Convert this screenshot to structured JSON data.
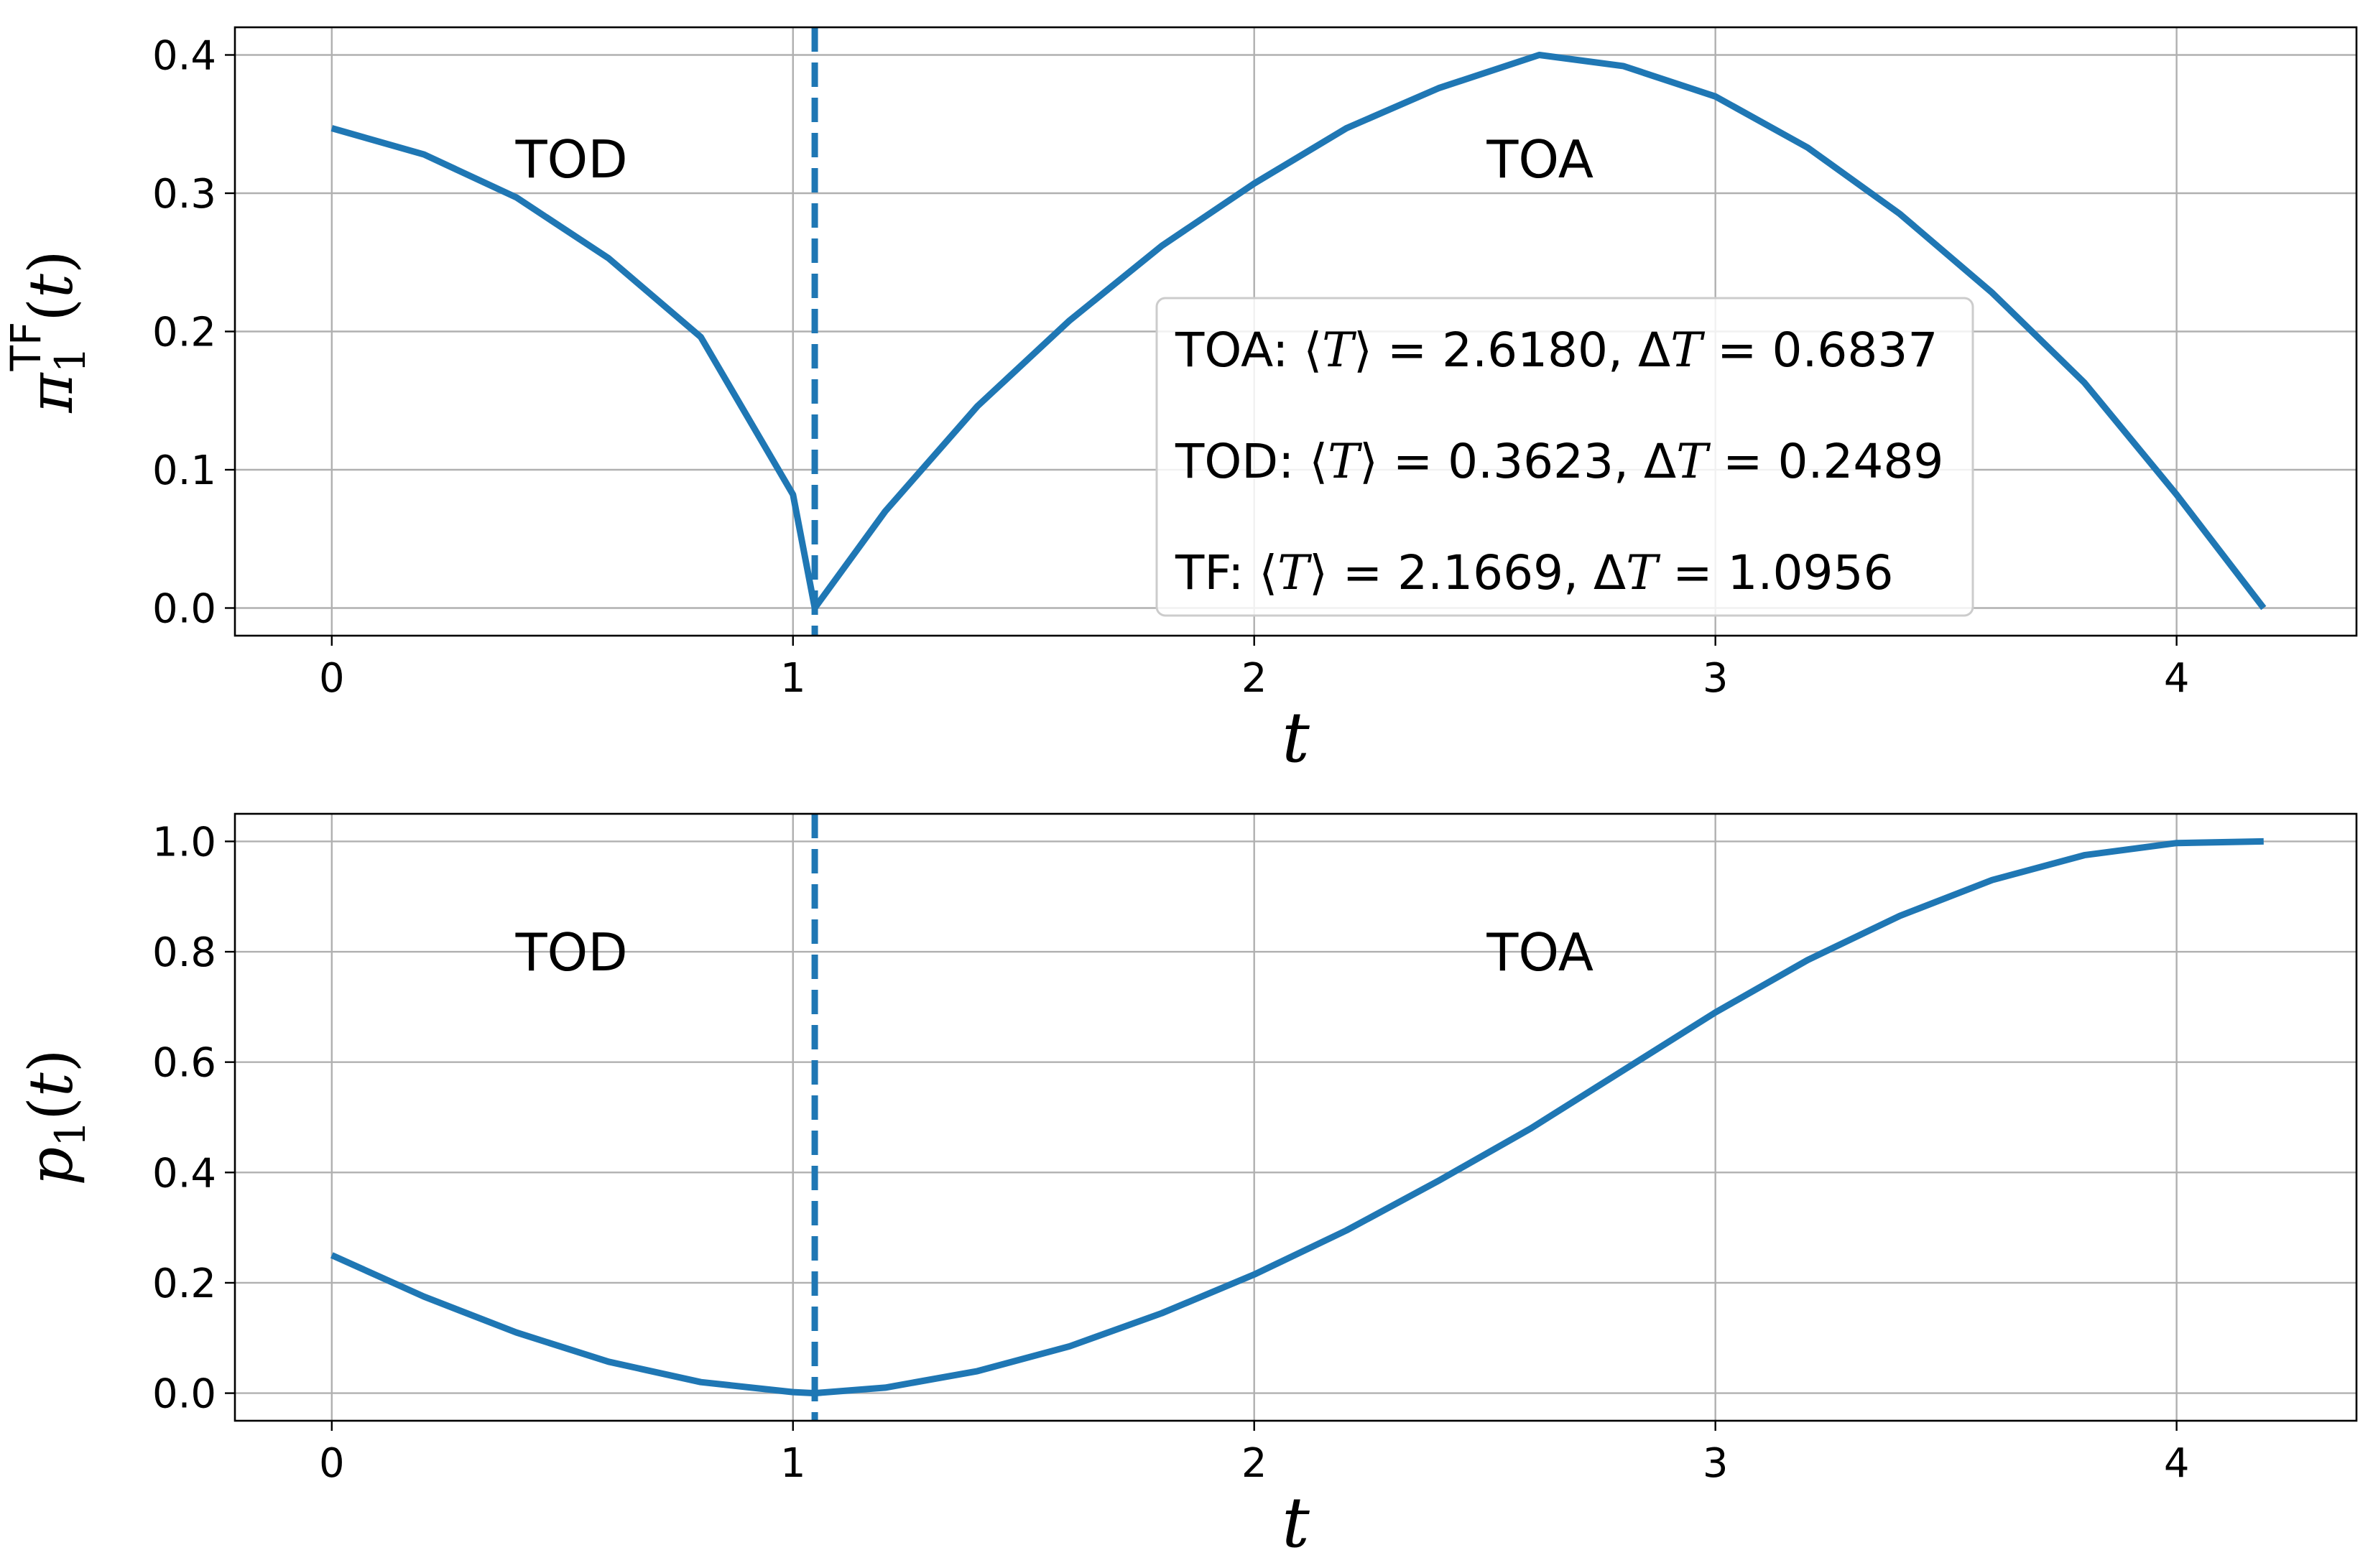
{
  "chart_data": [
    {
      "type": "line",
      "xlabel": "t",
      "ylabel": {
        "base": "π",
        "sub": "1",
        "sup": "TF",
        "arg": "(t)"
      },
      "xlim": [
        -0.21,
        4.39
      ],
      "ylim": [
        -0.02,
        0.42
      ],
      "xticks": [
        "0",
        "1",
        "2",
        "3",
        "4"
      ],
      "yticks": [
        "0.0",
        "0.1",
        "0.2",
        "0.3",
        "0.4"
      ],
      "grid": true,
      "series": [
        {
          "x": [
            0,
            0.2,
            0.4,
            0.6,
            0.8,
            1.0,
            1.0472,
            1.2,
            1.4,
            1.6,
            1.8,
            2.0,
            2.2,
            2.4,
            2.618,
            2.8,
            3.0,
            3.2,
            3.4,
            3.6,
            3.8,
            4.0,
            4.1888
          ],
          "y": [
            0.347,
            0.328,
            0.297,
            0.253,
            0.196,
            0.082,
            0.0,
            0.07,
            0.146,
            0.208,
            0.262,
            0.307,
            0.347,
            0.376,
            0.4,
            0.392,
            0.37,
            0.333,
            0.285,
            0.228,
            0.163,
            0.082,
            0.0
          ],
          "color": "#1f77b4"
        }
      ],
      "vline": {
        "x": 1.0472,
        "color": "#1f77b4",
        "style": "dashed"
      },
      "regions": [
        {
          "label": "TOD",
          "x": 0.52,
          "y": 0.325
        },
        {
          "label": "TOA",
          "x": 2.62,
          "y": 0.325
        }
      ],
      "stats_box": {
        "lines": [
          {
            "label": "TOA:",
            "mean": "2.6180",
            "std": "0.6837"
          },
          {
            "label": "TOD:",
            "mean": "0.3623",
            "std": "0.2489"
          },
          {
            "label": "TF:",
            "mean": "2.1669",
            "std": "1.0956"
          }
        ],
        "placement": "lower-center"
      }
    },
    {
      "type": "line",
      "xlabel": "t",
      "ylabel": {
        "base": "p",
        "sub": "1",
        "sup": "",
        "arg": "(t)"
      },
      "xlim": [
        -0.21,
        4.39
      ],
      "ylim": [
        -0.05,
        1.05
      ],
      "xticks": [
        "0",
        "1",
        "2",
        "3",
        "4"
      ],
      "yticks": [
        "0.0",
        "0.2",
        "0.4",
        "0.6",
        "0.8",
        "1.0"
      ],
      "grid": true,
      "series": [
        {
          "x": [
            0,
            0.2,
            0.4,
            0.6,
            0.8,
            1.0,
            1.0472,
            1.2,
            1.4,
            1.6,
            1.8,
            2.0,
            2.2,
            2.4,
            2.6,
            2.8,
            3.0,
            3.2,
            3.4,
            3.6,
            3.8,
            4.0,
            4.1888
          ],
          "y": [
            0.25,
            0.175,
            0.11,
            0.057,
            0.02,
            0.002,
            0.0,
            0.01,
            0.04,
            0.085,
            0.145,
            0.215,
            0.295,
            0.385,
            0.48,
            0.585,
            0.69,
            0.785,
            0.865,
            0.93,
            0.975,
            0.997,
            1.0
          ],
          "color": "#1f77b4"
        }
      ],
      "vline": {
        "x": 1.0472,
        "color": "#1f77b4",
        "style": "dashed"
      },
      "regions": [
        {
          "label": "TOD",
          "x": 0.52,
          "y": 0.8
        },
        {
          "label": "TOA",
          "x": 2.62,
          "y": 0.8
        }
      ]
    }
  ]
}
